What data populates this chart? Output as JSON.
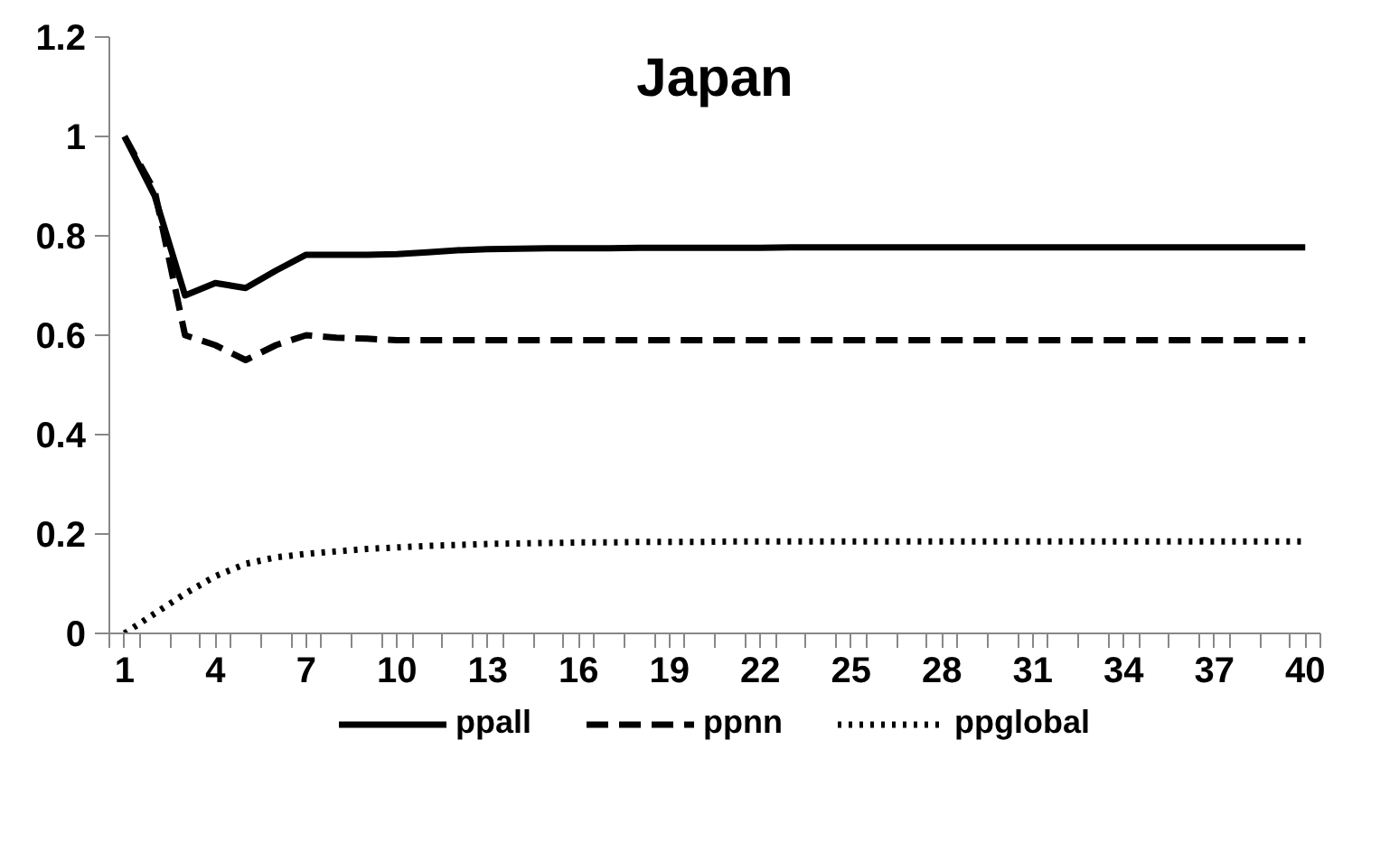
{
  "chart_data": {
    "type": "line",
    "title": "Japan",
    "x": [
      1,
      2,
      3,
      4,
      5,
      6,
      7,
      8,
      9,
      10,
      11,
      12,
      13,
      14,
      15,
      16,
      17,
      18,
      19,
      20,
      21,
      22,
      23,
      24,
      25,
      26,
      27,
      28,
      29,
      30,
      31,
      32,
      33,
      34,
      35,
      36,
      37,
      38,
      39,
      40
    ],
    "series": [
      {
        "name": "ppall",
        "color": "#000000",
        "line_style": "solid",
        "values": [
          1.0,
          0.88,
          0.68,
          0.705,
          0.695,
          0.73,
          0.762,
          0.762,
          0.762,
          0.763,
          0.767,
          0.771,
          0.773,
          0.774,
          0.775,
          0.775,
          0.775,
          0.776,
          0.776,
          0.776,
          0.776,
          0.776,
          0.777,
          0.777,
          0.777,
          0.777,
          0.777,
          0.777,
          0.777,
          0.777,
          0.777,
          0.777,
          0.777,
          0.777,
          0.777,
          0.777,
          0.777,
          0.777,
          0.777,
          0.777
        ]
      },
      {
        "name": "ppnn",
        "color": "#000000",
        "line_style": "dashed",
        "values": [
          1.0,
          0.89,
          0.6,
          0.58,
          0.55,
          0.58,
          0.6,
          0.595,
          0.593,
          0.59,
          0.59,
          0.59,
          0.59,
          0.59,
          0.59,
          0.59,
          0.59,
          0.59,
          0.59,
          0.59,
          0.59,
          0.59,
          0.59,
          0.59,
          0.59,
          0.59,
          0.59,
          0.59,
          0.59,
          0.59,
          0.59,
          0.59,
          0.59,
          0.59,
          0.59,
          0.59,
          0.59,
          0.59,
          0.59,
          0.59
        ]
      },
      {
        "name": "ppglobal",
        "color": "#000000",
        "line_style": "dotted",
        "values": [
          0.0,
          0.04,
          0.08,
          0.115,
          0.14,
          0.153,
          0.16,
          0.165,
          0.17,
          0.173,
          0.176,
          0.178,
          0.18,
          0.181,
          0.182,
          0.183,
          0.183,
          0.184,
          0.184,
          0.184,
          0.185,
          0.185,
          0.185,
          0.185,
          0.185,
          0.185,
          0.185,
          0.185,
          0.185,
          0.185,
          0.185,
          0.185,
          0.185,
          0.185,
          0.185,
          0.185,
          0.185,
          0.185,
          0.185,
          0.185
        ]
      }
    ],
    "xlim": [
      0.5,
      40.5
    ],
    "xticks": [
      1,
      4,
      7,
      10,
      13,
      16,
      19,
      22,
      25,
      28,
      31,
      34,
      37,
      40
    ],
    "ylim": [
      0,
      1.2
    ],
    "yticks": [
      0,
      0.2,
      0.4,
      0.6,
      0.8,
      1,
      1.2
    ],
    "grid": false,
    "legend": "bottom",
    "marker": "none"
  }
}
